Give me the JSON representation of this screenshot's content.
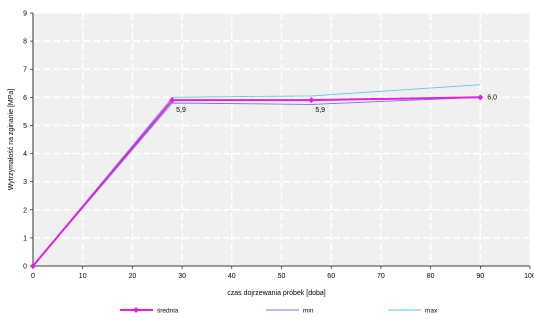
{
  "chart_data": {
    "type": "line",
    "xlabel": "czas dojrzewania próbek [doba]",
    "ylabel": "Wytrzymałość na zginanie [MPa]",
    "xlim": [
      0,
      100
    ],
    "ylim": [
      0,
      9
    ],
    "x_ticks": [
      "0",
      "10",
      "20",
      "30",
      "40",
      "50",
      "60",
      "70",
      "80",
      "90",
      "100"
    ],
    "y_ticks": [
      "0",
      "1",
      "2",
      "3",
      "4",
      "5",
      "6",
      "7",
      "8",
      "9"
    ],
    "grid": true,
    "legend_position": "bottom",
    "series": [
      {
        "name": "średnia",
        "color": "#e61ee6",
        "points": [
          [
            0,
            0
          ],
          [
            28,
            5.9
          ],
          [
            56,
            5.9
          ],
          [
            90,
            6.0
          ]
        ],
        "labels": [
          "",
          "5,9",
          "5,9",
          "6,0"
        ]
      },
      {
        "name": "min",
        "color": "#7b6fd6",
        "points": [
          [
            0,
            0
          ],
          [
            28,
            5.8
          ],
          [
            56,
            5.75
          ],
          [
            90,
            6.0
          ]
        ]
      },
      {
        "name": "max",
        "color": "#63c7e0",
        "points": [
          [
            0,
            0
          ],
          [
            28,
            6.0
          ],
          [
            56,
            6.05
          ],
          [
            90,
            6.45
          ]
        ]
      }
    ]
  }
}
